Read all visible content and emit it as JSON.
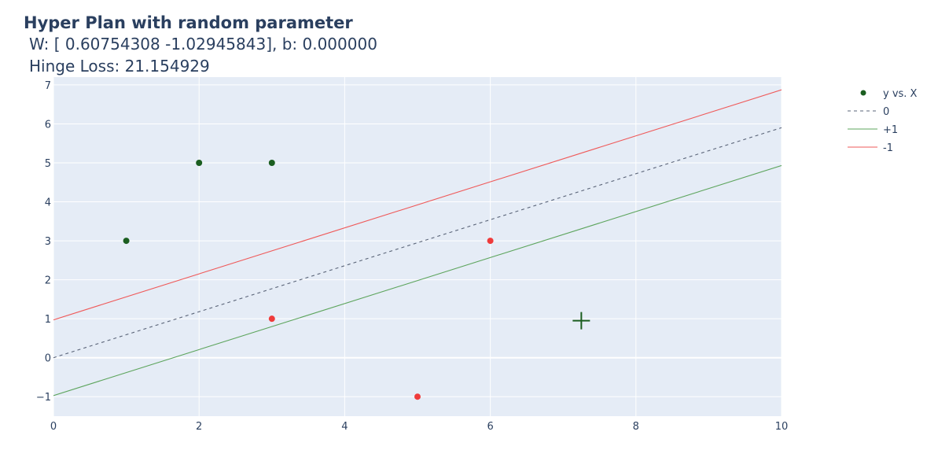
{
  "chart_data": {
    "type": "scatter",
    "title": "Hyper Plan with random parameter",
    "subtitle_lines": [
      "W: [ 0.60754308 -1.02945843],  b: 0.000000",
      "Hinge Loss: 21.154929"
    ],
    "xlabel": "",
    "ylabel": "",
    "xlim": [
      0,
      10
    ],
    "ylim": [
      -1.5,
      7.2
    ],
    "xticks": [
      0,
      2,
      4,
      6,
      8,
      10
    ],
    "yticks": [
      -1,
      0,
      1,
      2,
      3,
      4,
      5,
      6,
      7
    ],
    "grid": true,
    "legend_position": "top-right, outside plot",
    "series": [
      {
        "name": "y vs. X",
        "kind": "markers",
        "points": [
          {
            "x": 1,
            "y": 3,
            "color": "#1b5e20"
          },
          {
            "x": 2,
            "y": 5,
            "color": "#1b5e20"
          },
          {
            "x": 3,
            "y": 5,
            "color": "#1b5e20"
          },
          {
            "x": 3,
            "y": 1,
            "color": "#ef3b3b"
          },
          {
            "x": 6,
            "y": 3,
            "color": "#ef3b3b"
          },
          {
            "x": 5,
            "y": -1,
            "color": "#ef3b3b"
          }
        ]
      },
      {
        "name": "0",
        "kind": "line",
        "dash": "dash",
        "color": "#5a6478",
        "x": [
          0,
          10
        ],
        "y": [
          0,
          5.9016
        ]
      },
      {
        "name": "+1",
        "kind": "line",
        "dash": "solid",
        "color": "#5ea55e",
        "x": [
          0,
          10
        ],
        "y": [
          -0.9714,
          4.9302
        ]
      },
      {
        "name": "-1",
        "kind": "line",
        "dash": "solid",
        "color": "#ef5a5a",
        "x": [
          0,
          10
        ],
        "y": [
          0.9714,
          6.873
        ]
      }
    ],
    "annotations": [
      {
        "type": "cross-marker",
        "x": 7.25,
        "y": 0.95,
        "color": "#1b5e20"
      }
    ],
    "colors": {
      "plot_background": "#e5ecf6",
      "grid": "#ffffff",
      "text": "#2a3f5f",
      "legend_marker": "#1b5e20"
    }
  }
}
